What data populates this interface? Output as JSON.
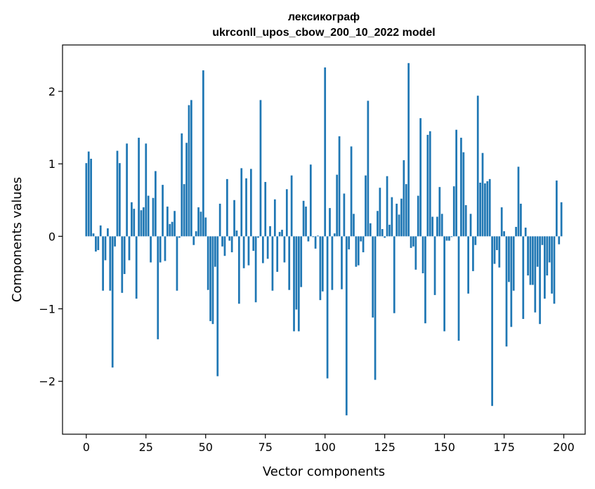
{
  "chart_data": {
    "type": "bar",
    "title": "лексикограф",
    "subtitle": "ukrconll_upos_cbow_200_10_2022 model",
    "xlabel": "Vector components",
    "ylabel": "Components values",
    "xlim": [
      -9.95,
      208.95
    ],
    "ylim": [
      -2.73,
      2.64
    ],
    "xticks": [
      0,
      25,
      50,
      75,
      100,
      125,
      150,
      175,
      200
    ],
    "xtick_labels": [
      "0",
      "25",
      "50",
      "75",
      "100",
      "125",
      "150",
      "175",
      "200"
    ],
    "yticks": [
      -2,
      -1,
      0,
      1,
      2
    ],
    "ytick_labels": [
      "−2",
      "−1",
      "0",
      "1",
      "2"
    ],
    "bar_color": "#1f77b4",
    "grid": false,
    "x": [
      0,
      1,
      2,
      3,
      4,
      5,
      6,
      7,
      8,
      9,
      10,
      11,
      12,
      13,
      14,
      15,
      16,
      17,
      18,
      19,
      20,
      21,
      22,
      23,
      24,
      25,
      26,
      27,
      28,
      29,
      30,
      31,
      32,
      33,
      34,
      35,
      36,
      37,
      38,
      39,
      40,
      41,
      42,
      43,
      44,
      45,
      46,
      47,
      48,
      49,
      50,
      51,
      52,
      53,
      54,
      55,
      56,
      57,
      58,
      59,
      60,
      61,
      62,
      63,
      64,
      65,
      66,
      67,
      68,
      69,
      70,
      71,
      72,
      73,
      74,
      75,
      76,
      77,
      78,
      79,
      80,
      81,
      82,
      83,
      84,
      85,
      86,
      87,
      88,
      89,
      90,
      91,
      92,
      93,
      94,
      95,
      96,
      97,
      98,
      99,
      100,
      101,
      102,
      103,
      104,
      105,
      106,
      107,
      108,
      109,
      110,
      111,
      112,
      113,
      114,
      115,
      116,
      117,
      118,
      119,
      120,
      121,
      122,
      123,
      124,
      125,
      126,
      127,
      128,
      129,
      130,
      131,
      132,
      133,
      134,
      135,
      136,
      137,
      138,
      139,
      140,
      141,
      142,
      143,
      144,
      145,
      146,
      147,
      148,
      149,
      150,
      151,
      152,
      153,
      154,
      155,
      156,
      157,
      158,
      159,
      160,
      161,
      162,
      163,
      164,
      165,
      166,
      167,
      168,
      169,
      170,
      171,
      172,
      173,
      174,
      175,
      176,
      177,
      178,
      179,
      180,
      181,
      182,
      183,
      184,
      185,
      186,
      187,
      188,
      189,
      190,
      191,
      192,
      193,
      194,
      195,
      196,
      197,
      198,
      199
    ],
    "values": [
      1.01,
      1.17,
      1.07,
      0.04,
      -0.21,
      -0.19,
      0.15,
      -0.75,
      -0.33,
      0.11,
      -0.75,
      -1.81,
      -0.14,
      1.18,
      1.01,
      -0.78,
      -0.52,
      1.28,
      -0.33,
      0.47,
      0.38,
      -0.86,
      1.36,
      0.36,
      0.4,
      1.28,
      0.56,
      -0.36,
      0.53,
      0.9,
      -1.42,
      -0.36,
      0.71,
      -0.34,
      0.41,
      0.17,
      0.2,
      0.35,
      -0.75,
      -0.02,
      1.42,
      0.72,
      1.29,
      1.81,
      1.88,
      -0.12,
      0.07,
      0.4,
      0.34,
      2.29,
      0.26,
      -0.74,
      -1.17,
      -1.21,
      -0.42,
      -1.93,
      0.45,
      -0.14,
      -0.27,
      0.79,
      -0.06,
      -0.22,
      0.5,
      0.08,
      -0.93,
      0.94,
      -0.44,
      0.8,
      -0.4,
      0.93,
      -0.2,
      -0.91,
      -0.02,
      1.88,
      -0.37,
      0.75,
      -0.31,
      0.14,
      -0.75,
      0.51,
      -0.49,
      0.06,
      0.09,
      -0.36,
      0.65,
      -0.74,
      0.84,
      -1.31,
      -1.01,
      -1.31,
      -0.7,
      0.49,
      0.41,
      -0.07,
      0.99,
      -0.01,
      -0.17,
      0.01,
      -0.88,
      -0.76,
      2.33,
      -1.96,
      0.39,
      -0.74,
      0.04,
      0.85,
      1.38,
      -0.73,
      0.59,
      -2.47,
      -0.18,
      1.24,
      0.31,
      -0.42,
      -0.4,
      -0.07,
      -0.22,
      0.84,
      1.87,
      0.18,
      -1.12,
      -1.98,
      0.35,
      0.67,
      0.1,
      -0.02,
      0.83,
      0.16,
      0.54,
      -1.06,
      0.45,
      0.3,
      0.52,
      1.05,
      0.72,
      2.39,
      -0.16,
      -0.14,
      -0.46,
      0.56,
      1.63,
      -0.51,
      -1.2,
      1.4,
      1.45,
      0.27,
      -0.81,
      0.27,
      0.68,
      0.31,
      -1.31,
      -0.06,
      -0.06,
      -0.01,
      0.69,
      1.47,
      -1.44,
      1.36,
      1.16,
      0.43,
      -0.79,
      0.31,
      -0.48,
      -0.12,
      1.94,
      0.74,
      1.15,
      0.73,
      0.76,
      0.79,
      -2.34,
      -0.38,
      -0.19,
      -0.43,
      0.4,
      0.07,
      -1.52,
      -0.63,
      -1.25,
      -0.75,
      0.13,
      0.96,
      0.45,
      -1.14,
      0.12,
      -0.54,
      -0.67,
      -0.67,
      -1.05,
      -0.42,
      -1.21,
      -0.12,
      -0.86,
      -0.54,
      -0.36,
      -0.79,
      -0.93,
      0.77,
      -0.11,
      0.47
    ]
  }
}
